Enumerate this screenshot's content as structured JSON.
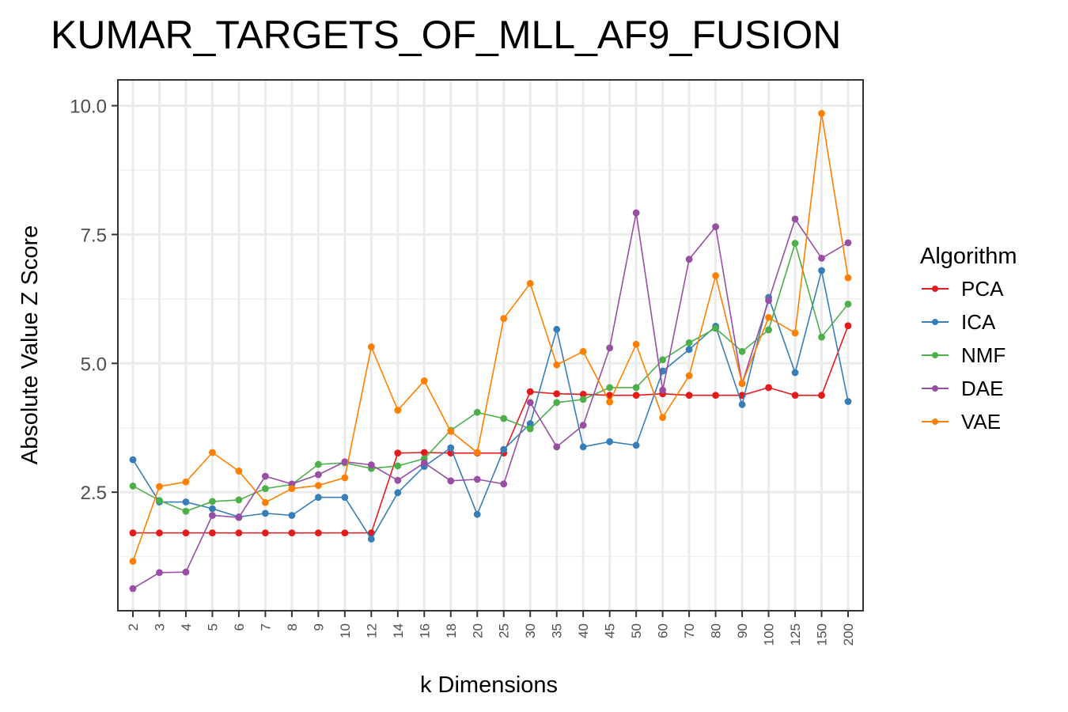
{
  "chart_data": {
    "type": "line",
    "title": "KUMAR_TARGETS_OF_MLL_AF9_FUSION",
    "xlabel": "k Dimensions",
    "ylabel": "Absolute Value Z Score",
    "categories": [
      "2",
      "3",
      "4",
      "5",
      "6",
      "7",
      "8",
      "9",
      "10",
      "12",
      "14",
      "16",
      "18",
      "20",
      "25",
      "30",
      "35",
      "40",
      "45",
      "50",
      "60",
      "70",
      "80",
      "90",
      "100",
      "125",
      "150",
      "200"
    ],
    "yticks": [
      "2.5",
      "5.0",
      "7.5",
      "10.0"
    ],
    "ylim": [
      0.2,
      10.5
    ],
    "grid": true,
    "legend_title": "Algorithm",
    "legend_position": "right",
    "series": [
      {
        "name": "PCA",
        "color": "#e41a1c",
        "values": [
          1.71,
          1.71,
          1.71,
          1.71,
          1.71,
          1.71,
          1.71,
          1.71,
          1.71,
          1.71,
          3.26,
          3.27,
          3.26,
          3.26,
          3.26,
          4.45,
          4.41,
          4.4,
          4.38,
          4.38,
          4.41,
          4.38,
          4.38,
          4.38,
          4.53,
          4.38,
          4.38,
          5.73
        ]
      },
      {
        "name": "ICA",
        "color": "#377eb8",
        "values": [
          3.13,
          2.31,
          2.31,
          2.18,
          2.02,
          2.09,
          2.05,
          2.4,
          2.4,
          1.59,
          2.49,
          3.0,
          3.36,
          2.07,
          3.33,
          3.83,
          5.66,
          3.38,
          3.48,
          3.41,
          4.85,
          5.27,
          5.72,
          4.2,
          6.28,
          4.82,
          6.8,
          4.26
        ]
      },
      {
        "name": "NMF",
        "color": "#4daf4a",
        "values": [
          2.62,
          2.34,
          2.13,
          2.32,
          2.35,
          2.57,
          2.65,
          3.04,
          3.07,
          2.96,
          3.01,
          3.15,
          3.7,
          4.05,
          3.93,
          3.73,
          4.24,
          4.3,
          4.53,
          4.53,
          5.07,
          5.4,
          5.68,
          5.23,
          5.65,
          7.33,
          5.51,
          6.15
        ]
      },
      {
        "name": "DAE",
        "color": "#984ea3",
        "values": [
          0.63,
          0.94,
          0.95,
          2.05,
          2.01,
          2.81,
          2.66,
          2.84,
          3.09,
          3.03,
          2.73,
          3.07,
          2.72,
          2.75,
          2.66,
          4.24,
          3.38,
          3.8,
          5.3,
          7.92,
          4.48,
          7.02,
          7.65,
          4.61,
          6.22,
          7.8,
          7.04,
          7.34
        ]
      },
      {
        "name": "VAE",
        "color": "#ff7f00",
        "values": [
          1.16,
          2.61,
          2.7,
          3.27,
          2.91,
          2.3,
          2.57,
          2.63,
          2.78,
          5.32,
          4.09,
          4.66,
          3.68,
          3.27,
          5.87,
          6.55,
          4.97,
          5.23,
          4.25,
          5.37,
          3.95,
          4.76,
          6.7,
          4.61,
          5.89,
          5.59,
          9.85,
          6.66
        ]
      }
    ]
  }
}
